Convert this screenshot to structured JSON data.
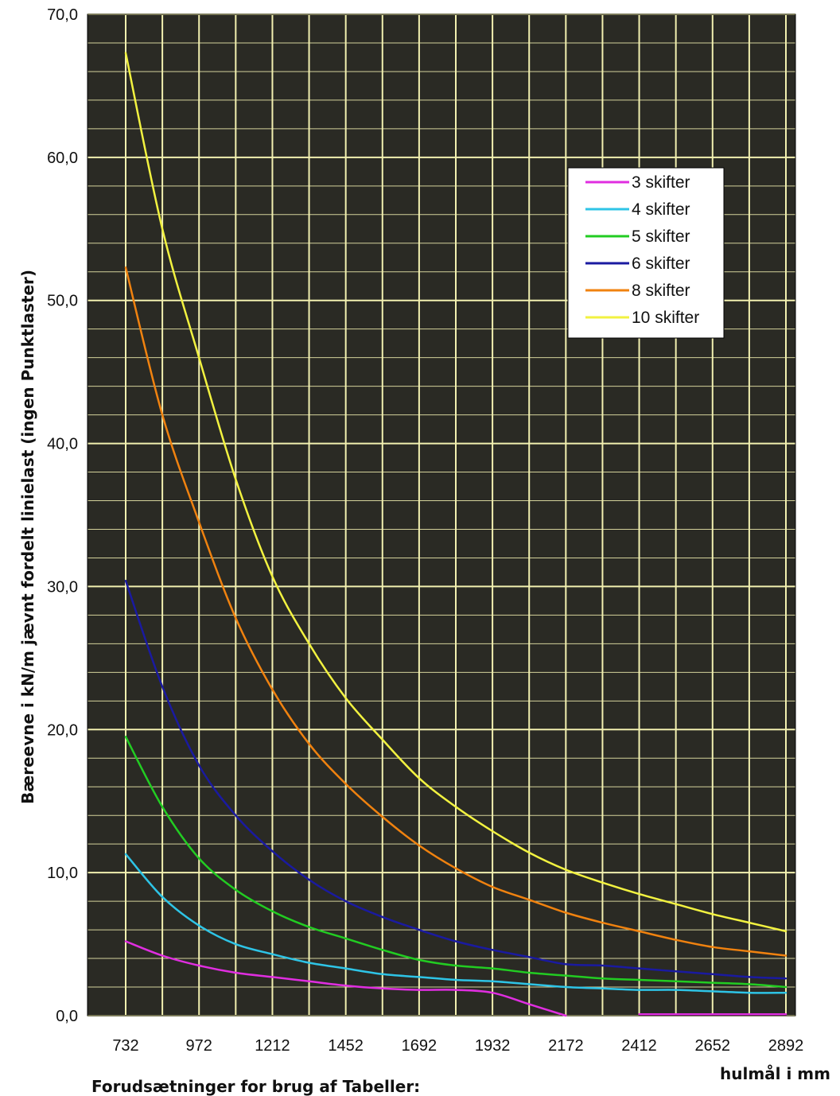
{
  "chart_data": {
    "type": "line",
    "title": "",
    "ylabel": "Bæreevne i kN/m jævnt fordelt linielast (ingen Punktlaster)",
    "xlabel": "hulmål i mm",
    "x": [
      732,
      852,
      972,
      1092,
      1212,
      1332,
      1452,
      1572,
      1692,
      1812,
      1932,
      2052,
      2172,
      2292,
      2412,
      2532,
      2652,
      2772,
      2892
    ],
    "ylim": [
      0,
      70
    ],
    "yticks": [
      "0,0",
      "10,0",
      "20,0",
      "30,0",
      "40,0",
      "50,0",
      "60,0",
      "70,0"
    ],
    "xticks": [
      "732",
      "972",
      "1212",
      "1452",
      "1692",
      "1932",
      "2172",
      "2412",
      "2652",
      "2892"
    ],
    "legend_position": "top-right",
    "series": [
      {
        "name": "3 skifter",
        "color": "#e02ee0",
        "values": [
          5.2,
          4.2,
          3.5,
          3.0,
          2.7,
          2.4,
          2.1,
          1.9,
          1.8,
          1.8,
          1.6,
          0.8,
          0.0,
          null,
          0.1,
          0.1,
          0.1,
          0.1,
          0.1
        ]
      },
      {
        "name": "4 skifter",
        "color": "#2ec4e6",
        "values": [
          11.3,
          8.3,
          6.3,
          5.0,
          4.3,
          3.7,
          3.3,
          2.9,
          2.7,
          2.5,
          2.4,
          2.2,
          2.0,
          1.9,
          1.8,
          1.8,
          1.7,
          1.6,
          1.6
        ]
      },
      {
        "name": "5 skifter",
        "color": "#22cc22",
        "values": [
          19.5,
          14.6,
          11.0,
          8.8,
          7.3,
          6.2,
          5.4,
          4.6,
          3.9,
          3.5,
          3.3,
          3.0,
          2.8,
          2.6,
          2.5,
          2.4,
          2.3,
          2.2,
          2.0
        ]
      },
      {
        "name": "6 skifter",
        "color": "#1a1aa0",
        "values": [
          30.4,
          23.0,
          17.5,
          14.0,
          11.5,
          9.5,
          8.0,
          6.9,
          6.0,
          5.2,
          4.6,
          4.1,
          3.6,
          3.5,
          3.3,
          3.1,
          2.9,
          2.7,
          2.6
        ]
      },
      {
        "name": "8 skifter",
        "color": "#f0820f",
        "values": [
          52.3,
          42.0,
          34.5,
          27.8,
          22.8,
          19.0,
          16.2,
          13.9,
          11.9,
          10.3,
          9.0,
          8.1,
          7.2,
          6.5,
          5.9,
          5.3,
          4.8,
          4.5,
          4.2
        ]
      },
      {
        "name": "10 skifter",
        "color": "#f2f240",
        "values": [
          67.3,
          55.0,
          46.0,
          37.5,
          30.7,
          26.0,
          22.2,
          19.3,
          16.6,
          14.6,
          12.9,
          11.4,
          10.2,
          9.3,
          8.5,
          7.8,
          7.1,
          6.5,
          5.9
        ]
      }
    ]
  },
  "footnote": "Forudsætninger for brug af Tabeller:"
}
